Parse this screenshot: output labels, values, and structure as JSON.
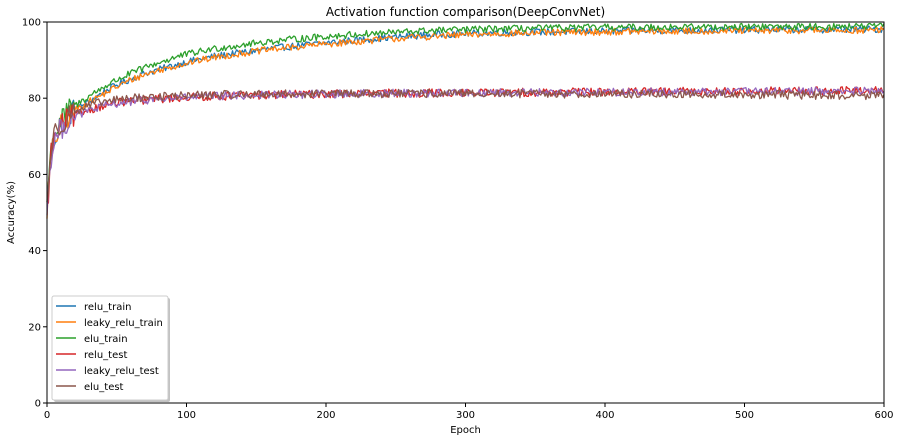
{
  "chart_data": {
    "type": "line",
    "title": "Activation function comparison(DeepConvNet)",
    "xlabel": "Epoch",
    "ylabel": "Accuracy(%)",
    "xlim": [
      0,
      600
    ],
    "ylim": [
      0,
      100
    ],
    "xticks": [
      0,
      100,
      200,
      300,
      400,
      500,
      600
    ],
    "yticks": [
      0,
      20,
      40,
      60,
      80,
      100
    ],
    "grid": false,
    "legend_position": "lower-left",
    "series": [
      {
        "name": "relu_train",
        "color": "#1f77b4",
        "x": [
          0,
          3,
          6,
          10,
          15,
          20,
          30,
          40,
          50,
          60,
          70,
          80,
          90,
          100,
          120,
          140,
          160,
          180,
          200,
          220,
          240,
          260,
          280,
          300,
          320,
          340,
          360,
          380,
          400,
          420,
          440,
          460,
          480,
          500,
          520,
          540,
          560,
          580,
          600
        ],
        "values": [
          52,
          66,
          70,
          73,
          75.5,
          77,
          79,
          81.5,
          83.5,
          85,
          86.5,
          87.5,
          88.5,
          89.5,
          91,
          92,
          93,
          93.8,
          94.5,
          95.2,
          95.8,
          96.3,
          96.7,
          97,
          97.2,
          97.3,
          97.4,
          97.5,
          97.6,
          97.7,
          97.8,
          97.8,
          97.9,
          97.9,
          98,
          98,
          98,
          98.1,
          98.1
        ]
      },
      {
        "name": "leaky_relu_train",
        "color": "#ff7f0e",
        "x": [
          0,
          3,
          6,
          10,
          15,
          20,
          30,
          40,
          50,
          60,
          70,
          80,
          90,
          100,
          120,
          140,
          160,
          180,
          200,
          220,
          240,
          260,
          280,
          300,
          320,
          340,
          360,
          380,
          400,
          420,
          440,
          460,
          480,
          500,
          520,
          540,
          560,
          580,
          600
        ],
        "values": [
          51,
          65,
          69.5,
          72.5,
          75,
          76.8,
          79,
          81,
          83,
          84.8,
          86.2,
          87.3,
          88.3,
          89.2,
          90.7,
          91.8,
          92.8,
          93.5,
          94.2,
          94.8,
          95.4,
          95.9,
          96.3,
          96.6,
          96.9,
          97.1,
          97.2,
          97.3,
          97.4,
          97.5,
          97.5,
          97.6,
          97.6,
          97.7,
          97.7,
          97.8,
          97.8,
          97.8,
          97.9
        ]
      },
      {
        "name": "elu_train",
        "color": "#2ca02c",
        "x": [
          0,
          3,
          6,
          10,
          15,
          20,
          30,
          40,
          50,
          60,
          70,
          80,
          90,
          100,
          120,
          140,
          160,
          180,
          200,
          220,
          240,
          260,
          280,
          300,
          320,
          340,
          360,
          380,
          400,
          420,
          440,
          460,
          480,
          500,
          520,
          540,
          560,
          580,
          600
        ],
        "values": [
          53,
          67,
          71,
          74,
          76.5,
          78,
          80.5,
          82.8,
          84.8,
          86.5,
          88,
          89.3,
          90.5,
          91.5,
          93,
          94,
          94.9,
          95.6,
          96.2,
          96.7,
          97.1,
          97.5,
          97.8,
          98,
          98.2,
          98.3,
          98.4,
          98.5,
          98.6,
          98.6,
          98.7,
          98.7,
          98.7,
          98.8,
          98.8,
          98.8,
          98.8,
          98.9,
          98.9
        ]
      },
      {
        "name": "relu_test",
        "color": "#d62728",
        "x": [
          0,
          3,
          6,
          10,
          15,
          20,
          30,
          40,
          50,
          60,
          70,
          80,
          90,
          100,
          120,
          140,
          160,
          180,
          200,
          220,
          240,
          260,
          280,
          300,
          320,
          340,
          360,
          380,
          400,
          420,
          440,
          460,
          480,
          500,
          520,
          540,
          560,
          580,
          600
        ],
        "values": [
          50,
          66,
          70,
          72.5,
          74.5,
          75.5,
          77,
          78,
          78.8,
          79.2,
          79.5,
          79.8,
          80,
          80.2,
          80.5,
          80.7,
          80.9,
          81,
          81.1,
          81.2,
          81.3,
          81.3,
          81.4,
          81.4,
          81.5,
          81.5,
          81.6,
          81.6,
          81.7,
          81.7,
          81.7,
          81.8,
          81.8,
          81.8,
          81.9,
          81.9,
          81.9,
          82,
          82
        ]
      },
      {
        "name": "leaky_relu_test",
        "color": "#9467bd",
        "x": [
          0,
          3,
          6,
          10,
          15,
          20,
          30,
          40,
          50,
          60,
          70,
          80,
          90,
          100,
          120,
          140,
          160,
          180,
          200,
          220,
          240,
          260,
          280,
          300,
          320,
          340,
          360,
          380,
          400,
          420,
          440,
          460,
          480,
          500,
          520,
          540,
          560,
          580,
          600
        ],
        "values": [
          51,
          65,
          69.5,
          72,
          74,
          75.2,
          76.8,
          77.8,
          78.6,
          79.1,
          79.5,
          79.8,
          80,
          80.2,
          80.5,
          80.7,
          80.9,
          81,
          81.1,
          81.2,
          81.3,
          81.3,
          81.4,
          81.4,
          81.5,
          81.5,
          81.5,
          81.6,
          81.6,
          81.6,
          81.7,
          81.7,
          81.7,
          81.7,
          81.8,
          81.8,
          81.8,
          81.8,
          81.8
        ]
      },
      {
        "name": "elu_test",
        "color": "#8c564b",
        "x": [
          0,
          3,
          6,
          10,
          15,
          20,
          30,
          40,
          50,
          60,
          70,
          80,
          90,
          100,
          120,
          140,
          160,
          180,
          200,
          220,
          240,
          260,
          280,
          300,
          320,
          340,
          360,
          380,
          400,
          420,
          440,
          460,
          480,
          500,
          520,
          540,
          560,
          580,
          600
        ],
        "values": [
          52,
          67,
          71,
          73.5,
          75.5,
          76.5,
          78,
          79,
          79.6,
          80,
          80.2,
          80.4,
          80.6,
          80.7,
          80.9,
          81,
          81.1,
          81.1,
          81.2,
          81.2,
          81.2,
          81.2,
          81.2,
          81.2,
          81.2,
          81.2,
          81.1,
          81.1,
          81.1,
          81.1,
          81,
          81,
          81,
          80.9,
          80.9,
          80.8,
          80.8,
          80.7,
          80.7
        ]
      }
    ]
  }
}
